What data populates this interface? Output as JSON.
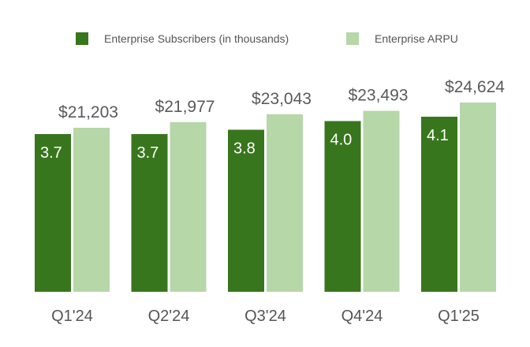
{
  "chart_data": {
    "type": "bar",
    "title": "",
    "xlabel": "",
    "ylabel": "",
    "categories": [
      "Q1'24",
      "Q2'24",
      "Q3'24",
      "Q4'24",
      "Q1'25"
    ],
    "series": [
      {
        "name": "Enterprise Subscribers (in thousands)",
        "color": "#38761d",
        "values": [
          3.7,
          3.7,
          3.8,
          4.0,
          4.1
        ],
        "labels": [
          "3.7",
          "3.7",
          "3.8",
          "4.0",
          "4.1"
        ],
        "label_position": "inside-top"
      },
      {
        "name": "Enterprise ARPU",
        "color": "#b6d7a8",
        "values": [
          21203,
          21977,
          23043,
          23493,
          24624
        ],
        "labels": [
          "$21,203",
          "$21,977",
          "$23,043",
          "$23,493",
          "$24,624"
        ],
        "label_position": "above"
      }
    ],
    "legend_position": "top-center",
    "grid": false,
    "y_axis_visible": false
  }
}
